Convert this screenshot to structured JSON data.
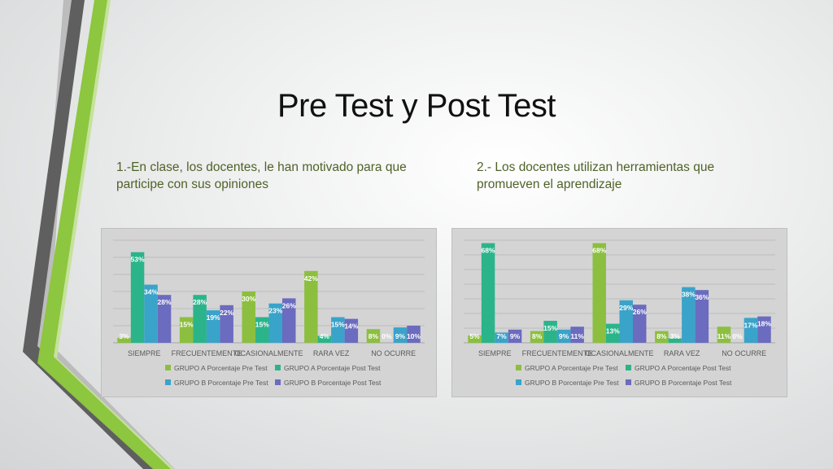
{
  "slide": {
    "title": "Pre Test y Post Test",
    "question1": "1.-En clase, los docentes, le han motivado para que participe con sus opiniones",
    "question2": "2.- Los docentes utilizan herramientas que promueven el aprendizaje"
  },
  "colors": {
    "grupo_a_pre": "#8cbf3f",
    "grupo_a_post": "#2bb48a",
    "grupo_b_pre": "#3aa3c9",
    "grupo_b_post": "#6b6bbf",
    "subtitle": "#4f6228"
  },
  "chart_data": [
    {
      "type": "bar",
      "categories": [
        "SIEMPRE",
        "FRECUENTEMENTE",
        "OCASIONALMENTE",
        "RARA VEZ",
        "NO OCURRE"
      ],
      "series": [
        {
          "name": "GRUPO A Porcentaje Pre Test",
          "values": [
            3,
            15,
            30,
            42,
            8
          ]
        },
        {
          "name": "GRUPO A Porcentaje Post Test",
          "values": [
            53,
            28,
            15,
            4,
            0
          ]
        },
        {
          "name": "GRUPO B Porcentaje Pre Test",
          "values": [
            34,
            19,
            23,
            15,
            9
          ]
        },
        {
          "name": "GRUPO B Porcentaje Post Test",
          "values": [
            28,
            22,
            26,
            14,
            10
          ]
        }
      ],
      "ylim": [
        0,
        60
      ],
      "grid": true,
      "legend": "bottom"
    },
    {
      "type": "bar",
      "categories": [
        "SIEMPRE",
        "FRECUENTEMENTE",
        "OCASIONALMENTE",
        "RARA VEZ",
        "NO OCURRE"
      ],
      "series": [
        {
          "name": "GRUPO A Porcentaje Pre Test",
          "values": [
            5,
            8,
            68,
            8,
            11
          ]
        },
        {
          "name": "GRUPO A Porcentaje Post Test",
          "values": [
            68,
            15,
            13,
            3,
            0
          ]
        },
        {
          "name": "GRUPO B Porcentaje Pre Test",
          "values": [
            7,
            9,
            29,
            38,
            17
          ]
        },
        {
          "name": "GRUPO B Porcentaje Post Test",
          "values": [
            9,
            11,
            26,
            36,
            18
          ]
        }
      ],
      "ylim": [
        0,
        70
      ],
      "grid": true,
      "legend": "bottom"
    }
  ]
}
